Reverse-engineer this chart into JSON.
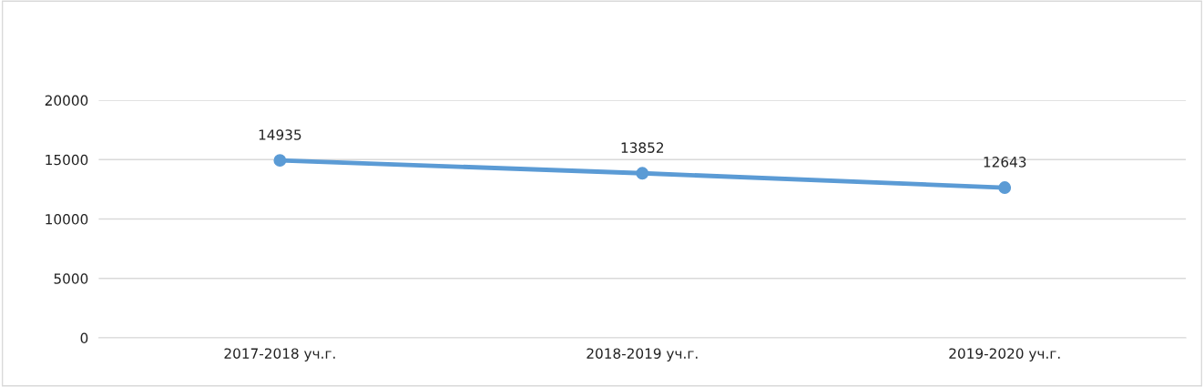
{
  "chart_data": {
    "type": "line",
    "categories": [
      "2017-2018 уч.г.",
      "2018-2019 уч.г.",
      "2019-2020 уч.г."
    ],
    "series": [
      {
        "color": "#5b9bd5",
        "values": [
          14935,
          13852,
          12643
        ]
      }
    ],
    "ylim": [
      0,
      20000
    ],
    "yticks": [
      0,
      5000,
      10000,
      15000,
      20000
    ],
    "grid": "y",
    "marker": "circle",
    "line_style": "solid",
    "data_labels": true,
    "legend": false
  }
}
